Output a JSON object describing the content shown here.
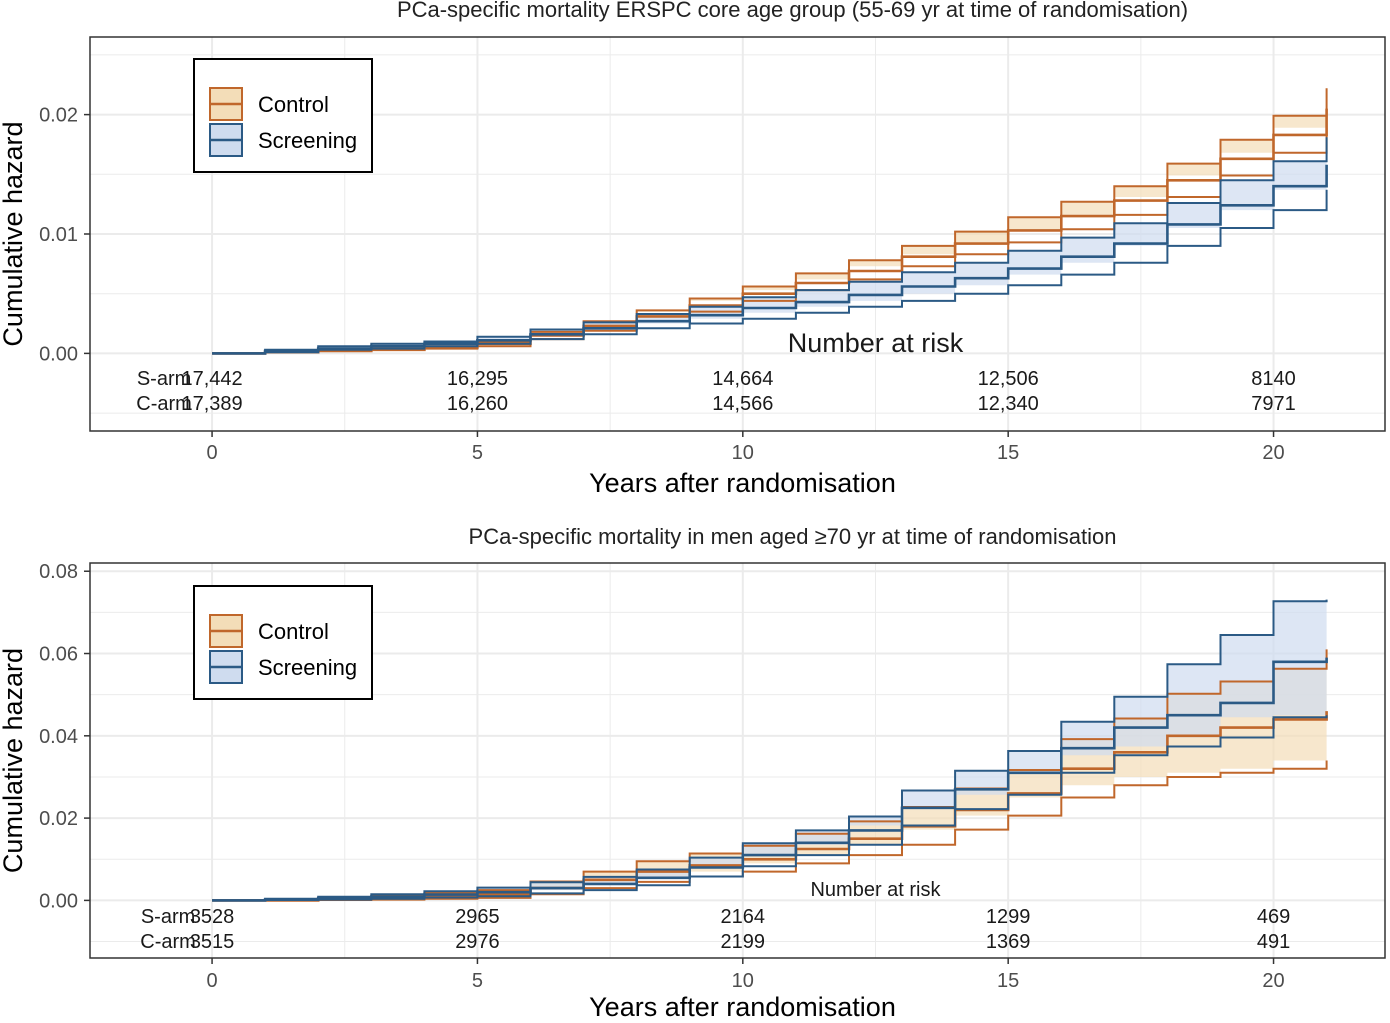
{
  "colors": {
    "control": "#c0672b",
    "control_fill": "#f3ddb8",
    "screening": "#2b5a85",
    "screening_fill": "#cfdcef",
    "grid": "#ebebeb",
    "panel_border": "#333333"
  },
  "icons": [
    "legend-swatch-control-icon",
    "legend-swatch-screening-icon"
  ],
  "chart_data": [
    {
      "type": "line",
      "title": "PCa-specific mortality ERSPC core age group (55-69 yr at time of randomisation)",
      "xlabel": "Years after randomisation",
      "ylabel": "Cumulative hazard",
      "xlim": [
        -2.3,
        22.1
      ],
      "ylim": [
        -0.0065,
        0.0265
      ],
      "xticks": [
        0,
        5,
        10,
        15,
        20
      ],
      "yticks": [
        0,
        0.01,
        0.02
      ],
      "ytick_labels": [
        "0.00",
        "0.01",
        "0.02"
      ],
      "grid": true,
      "legend_position": "top-left",
      "legend": [
        "Control",
        "Screening"
      ],
      "series": [
        {
          "name": "Control",
          "x": [
            0,
            1,
            2,
            3,
            4,
            5,
            6,
            7,
            8,
            9,
            10,
            11,
            12,
            13,
            14,
            15,
            16,
            17,
            18,
            19,
            20,
            21
          ],
          "y": [
            0,
            0.0001,
            0.0002,
            0.0003,
            0.0005,
            0.0008,
            0.0015,
            0.0023,
            0.0031,
            0.004,
            0.005,
            0.0059,
            0.0069,
            0.0081,
            0.0092,
            0.0103,
            0.0115,
            0.0128,
            0.0145,
            0.0163,
            0.0183,
            0.0205
          ],
          "lower": [
            0,
            0.0001,
            0.0002,
            0.0003,
            0.0004,
            0.0006,
            0.0012,
            0.0019,
            0.0027,
            0.0035,
            0.0044,
            0.0053,
            0.0062,
            0.0073,
            0.0083,
            0.0093,
            0.0104,
            0.0116,
            0.0131,
            0.0149,
            0.0168,
            0.0189
          ],
          "upper": [
            0,
            0.0002,
            0.0003,
            0.0004,
            0.0006,
            0.001,
            0.0018,
            0.0027,
            0.0036,
            0.0046,
            0.0056,
            0.0067,
            0.0078,
            0.009,
            0.0102,
            0.0114,
            0.0127,
            0.014,
            0.0159,
            0.0179,
            0.0199,
            0.0222
          ]
        },
        {
          "name": "Screening",
          "x": [
            0,
            1,
            2,
            3,
            4,
            5,
            6,
            7,
            8,
            9,
            10,
            11,
            12,
            13,
            14,
            15,
            16,
            17,
            18,
            19,
            20,
            21
          ],
          "y": [
            0,
            0.0002,
            0.0004,
            0.0006,
            0.0008,
            0.0011,
            0.0016,
            0.0021,
            0.0027,
            0.0032,
            0.0038,
            0.0043,
            0.0049,
            0.0056,
            0.0063,
            0.0071,
            0.0081,
            0.0092,
            0.0108,
            0.0124,
            0.014,
            0.0158
          ],
          "lower": [
            0,
            0.0001,
            0.0003,
            0.0004,
            0.0006,
            0.0008,
            0.0012,
            0.0016,
            0.0021,
            0.0025,
            0.0029,
            0.0034,
            0.0039,
            0.0044,
            0.005,
            0.0057,
            0.0066,
            0.0076,
            0.009,
            0.0105,
            0.012,
            0.0137
          ],
          "upper": [
            0,
            0.0003,
            0.0006,
            0.0008,
            0.001,
            0.0014,
            0.002,
            0.0026,
            0.0033,
            0.0039,
            0.0047,
            0.0053,
            0.006,
            0.0068,
            0.0076,
            0.0086,
            0.0097,
            0.0109,
            0.0126,
            0.0145,
            0.0161,
            0.0181
          ]
        }
      ],
      "risk_table": {
        "title": "Number at risk",
        "labels": [
          "S-arm",
          "C-arm"
        ],
        "times": [
          0,
          5,
          10,
          15,
          20
        ],
        "rows": [
          [
            "17,442",
            "16,295",
            "14,664",
            "12,506",
            "8140"
          ],
          [
            "17,389",
            "16,260",
            "14,566",
            "12,340",
            "7971"
          ]
        ]
      }
    },
    {
      "type": "line",
      "title": "PCa-specific mortality in men aged ≥70 yr at time of randomisation",
      "xlabel": "Years after randomisation",
      "ylabel": "Cumulative hazard",
      "xlim": [
        -2.3,
        22.1
      ],
      "ylim": [
        -0.014,
        0.082
      ],
      "xticks": [
        0,
        5,
        10,
        15,
        20
      ],
      "yticks": [
        0,
        0.02,
        0.04,
        0.06,
        0.08
      ],
      "ytick_labels": [
        "0.00",
        "0.02",
        "0.04",
        "0.06",
        "0.08"
      ],
      "grid": true,
      "legend_position": "top-left",
      "legend": [
        "Control",
        "Screening"
      ],
      "series": [
        {
          "name": "Control",
          "x": [
            0,
            1,
            2,
            3,
            4,
            5,
            6,
            7,
            8,
            9,
            10,
            11,
            12,
            13,
            14,
            15,
            16,
            17,
            18,
            19,
            20,
            21
          ],
          "y": [
            0,
            0,
            0.0003,
            0.0006,
            0.001,
            0.0015,
            0.003,
            0.005,
            0.007,
            0.0085,
            0.01,
            0.0125,
            0.015,
            0.018,
            0.022,
            0.026,
            0.032,
            0.036,
            0.04,
            0.042,
            0.044,
            0.046
          ],
          "lower": [
            0,
            0,
            0.0001,
            0.0002,
            0.0004,
            0.0006,
            0.0015,
            0.003,
            0.0045,
            0.0058,
            0.007,
            0.009,
            0.011,
            0.0135,
            0.0172,
            0.0206,
            0.025,
            0.028,
            0.03,
            0.031,
            0.032,
            0.034
          ],
          "upper": [
            0,
            0.0002,
            0.0006,
            0.0011,
            0.0018,
            0.0025,
            0.0046,
            0.007,
            0.0095,
            0.0114,
            0.0133,
            0.0162,
            0.0192,
            0.0227,
            0.0272,
            0.0317,
            0.0392,
            0.0442,
            0.0502,
            0.0532,
            0.0563,
            0.061
          ]
        },
        {
          "name": "Screening",
          "x": [
            0,
            1,
            2,
            3,
            4,
            5,
            6,
            7,
            8,
            9,
            10,
            11,
            12,
            13,
            14,
            15,
            16,
            17,
            18,
            19,
            20,
            21
          ],
          "y": [
            0,
            0.0002,
            0.0005,
            0.0009,
            0.0014,
            0.002,
            0.003,
            0.004,
            0.0055,
            0.008,
            0.011,
            0.014,
            0.017,
            0.0225,
            0.027,
            0.031,
            0.037,
            0.042,
            0.045,
            0.048,
            0.058,
            0.059
          ],
          "lower": [
            0,
            0.0001,
            0.0002,
            0.0004,
            0.0007,
            0.001,
            0.0017,
            0.0025,
            0.0037,
            0.0058,
            0.0083,
            0.011,
            0.0135,
            0.0182,
            0.0222,
            0.0257,
            0.031,
            0.0353,
            0.0374,
            0.0396,
            0.0445,
            0.045
          ],
          "upper": [
            0,
            0.0004,
            0.0009,
            0.0015,
            0.0022,
            0.0031,
            0.0044,
            0.0057,
            0.0075,
            0.0104,
            0.0139,
            0.017,
            0.0204,
            0.0267,
            0.0315,
            0.0363,
            0.0434,
            0.0495,
            0.0574,
            0.0645,
            0.0727,
            0.0731
          ]
        }
      ],
      "risk_table": {
        "title": "Number at risk",
        "labels": [
          "S-arm",
          "C-arm"
        ],
        "times": [
          0,
          5,
          10,
          15,
          20
        ],
        "rows": [
          [
            "3528",
            "2965",
            "2164",
            "1299",
            "469"
          ],
          [
            "3515",
            "2976",
            "2199",
            "1369",
            "491"
          ]
        ]
      }
    }
  ]
}
